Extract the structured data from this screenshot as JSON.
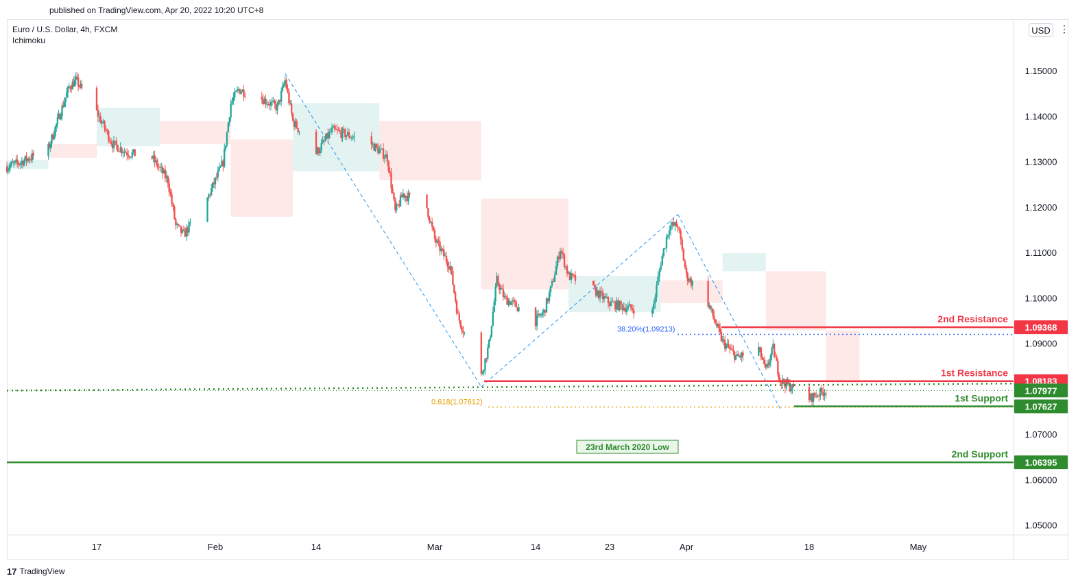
{
  "header": {
    "published": "published on TradingView.com, Apr 20, 2022 10:20 UTC+8"
  },
  "legend": {
    "symbol": "Euro / U.S. Dollar, 4h, FXCM",
    "indicator": "Ichimoku"
  },
  "currency_button": "USD",
  "footer": {
    "brand": "TradingView"
  },
  "colors": {
    "up": "#26a69a",
    "down": "#ef5350",
    "resistance": "#f23645",
    "support": "#2e8b2e",
    "fib_blue": "#2962ff",
    "fib_orange": "#e6a100"
  },
  "chart_data": {
    "type": "candlestick",
    "symbol": "EURUSD",
    "timeframe": "4h",
    "y_axis": {
      "min": 1.045,
      "max": 1.16,
      "ticks": [
        "1.05000",
        "1.06000",
        "1.07000",
        "1.08000",
        "1.09000",
        "1.10000",
        "1.11000",
        "1.12000",
        "1.13000",
        "1.14000",
        "1.15000"
      ]
    },
    "x_axis": {
      "ticks": [
        "17",
        "Feb",
        "14",
        "Mar",
        "14",
        "23",
        "Apr",
        "18",
        "May"
      ]
    },
    "levels": [
      {
        "label": "2nd Resistance",
        "price": 1.09368,
        "price_text": "1.09368",
        "kind": "resistance"
      },
      {
        "label": "1st Resistance",
        "price": 1.08183,
        "price_text": "1.08183",
        "kind": "resistance"
      },
      {
        "label": "",
        "price": 1.07977,
        "price_text": "1.07977",
        "kind": "current"
      },
      {
        "label": "1st Support",
        "price": 1.07627,
        "price_text": "1.07627",
        "kind": "support"
      },
      {
        "label": "2nd Support",
        "price": 1.06395,
        "price_text": "1.06395",
        "kind": "support"
      }
    ],
    "annotations": [
      {
        "text": "38.20%(1.09213)",
        "price": 1.09213
      },
      {
        "text": "0.618(1.07612)",
        "price": 1.07612
      },
      {
        "text": "23rd March 2020 Low"
      }
    ],
    "swing_points": [
      {
        "date": "2022-02-10",
        "price": 1.1495
      },
      {
        "date": "2022-03-07",
        "price": 1.0806
      },
      {
        "date": "2022-03-31",
        "price": 1.1185
      },
      {
        "date": "2022-04-14",
        "price": 1.0757
      }
    ]
  }
}
